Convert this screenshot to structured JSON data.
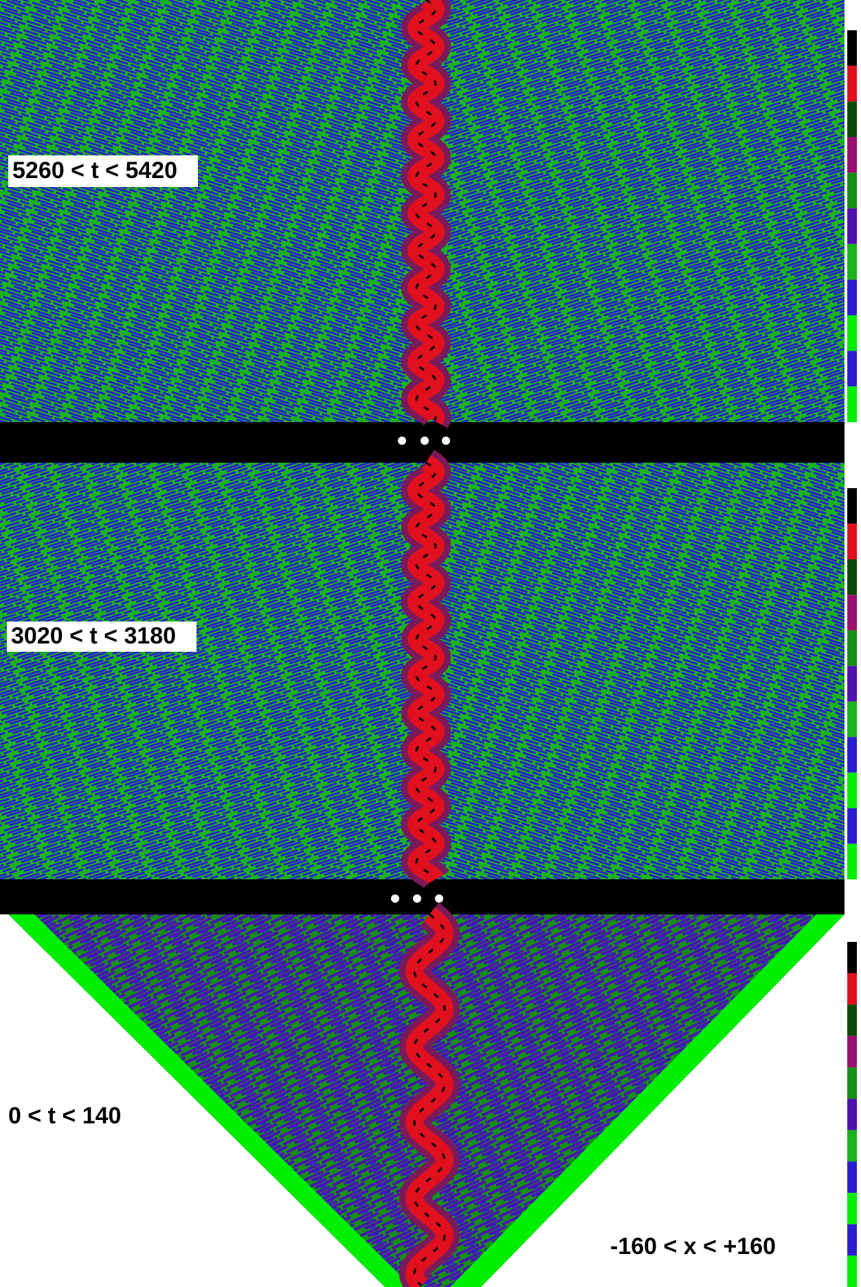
{
  "panels": [
    {
      "label": "5260 < t < 5420"
    },
    {
      "label": "3020 < t < 3180"
    },
    {
      "label": "0 < t < 140"
    }
  ],
  "x_range_label": "-160 < x < +160"
}
